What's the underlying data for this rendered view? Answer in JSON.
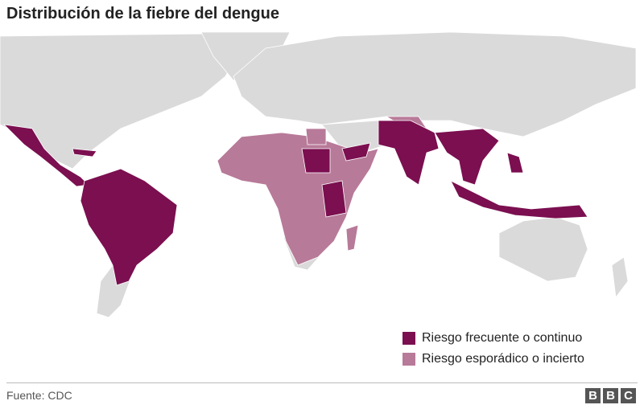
{
  "title": "Distribución de la fiebre del dengue",
  "legend": [
    {
      "label": "Riesgo frecuente o continuo",
      "color": "#7b0f50"
    },
    {
      "label": "Riesgo esporádico o incierto",
      "color": "#b87a99"
    }
  ],
  "source": "Fuente: CDC",
  "logo": [
    "B",
    "B",
    "C"
  ]
}
